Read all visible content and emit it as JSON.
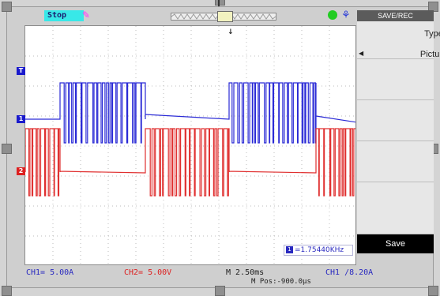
{
  "status": {
    "run_state": "Stop",
    "run_icon": "wrench-icon"
  },
  "top_icons": {
    "green": "status-dot-icon",
    "blue": "usb-icon"
  },
  "screen": {
    "trigger_position_marker": "↓"
  },
  "channels": {
    "ch1_marker": "1",
    "ch2_marker": "2",
    "trigger_marker": "T",
    "ch1_color": "#2a2ad6",
    "ch2_color": "#e03030"
  },
  "frequency": {
    "tag": "1",
    "value": "=1.75440KHz"
  },
  "menu": {
    "title": "SAVE/REC",
    "type_label": "Type",
    "type_value": "Picture",
    "save_label": "Save"
  },
  "readouts": {
    "ch1": "CH1= 5.00A",
    "ch2": "CH2= 5.00V",
    "time": "M 2.50ms",
    "trigger": "CH1 /8.20A",
    "mpos": "M Pos:-900.0μs"
  }
}
